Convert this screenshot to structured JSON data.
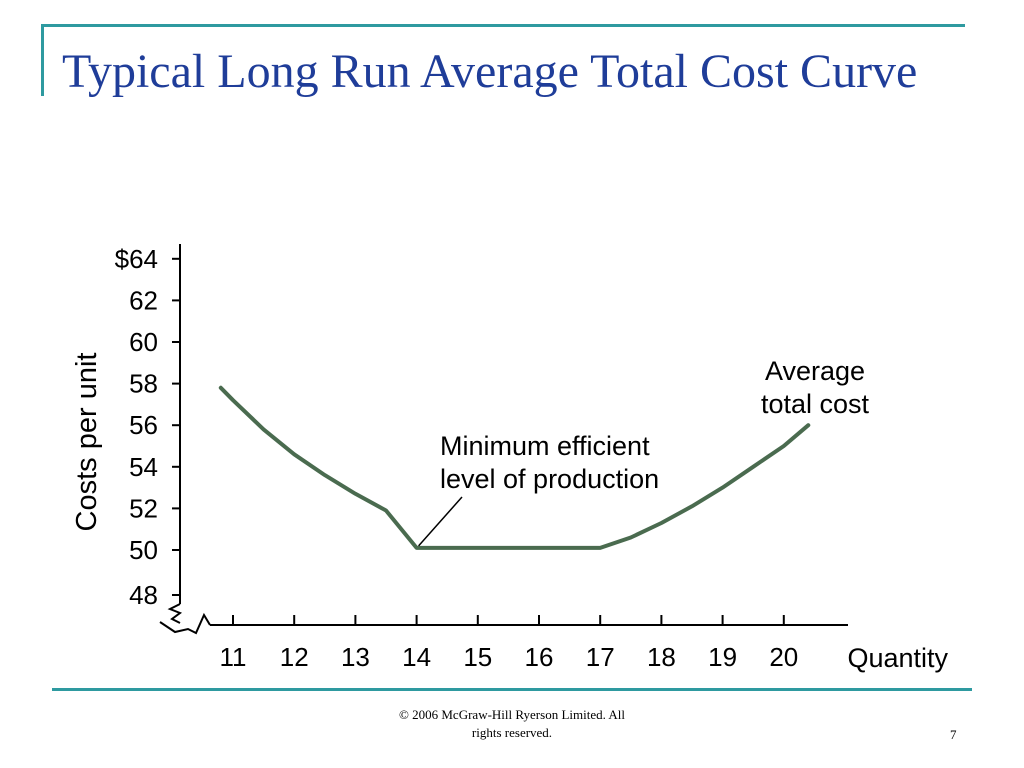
{
  "slide": {
    "title": "Typical Long Run Average Total Cost Curve",
    "footer": "© 2006 McGraw-Hill Ryerson Limited.  All\nrights reserved.",
    "page_number": "7"
  },
  "colors": {
    "title": "#1f3d99",
    "rule": "#2e9aa0",
    "curve": "#4a6b4f",
    "axis": "#000000"
  },
  "chart_data": {
    "type": "line",
    "ylabel": "Costs per unit",
    "xlabel": "Quantity",
    "x_ticks": [
      "11",
      "12",
      "13",
      "14",
      "15",
      "16",
      "17",
      "18",
      "19",
      "20"
    ],
    "y_ticks": [
      "48",
      "50",
      "52",
      "54",
      "56",
      "58",
      "60",
      "62",
      "$64"
    ],
    "y_tick_values": [
      48,
      50,
      52,
      54,
      56,
      58,
      60,
      62,
      64
    ],
    "xlim": [
      10.5,
      20.8
    ],
    "ylim": [
      48,
      64
    ],
    "axis_breaks": [
      "x",
      "y"
    ],
    "grid": false,
    "series": [
      {
        "x": [
          10.8,
          11.0,
          11.5,
          12.0,
          12.5,
          13.0,
          13.5,
          14.0,
          14.5,
          15.0,
          15.5,
          16.0,
          16.5,
          17.0,
          17.5,
          18.0,
          18.5,
          19.0,
          19.5,
          20.0,
          20.4
        ],
        "y": [
          57.8,
          57.2,
          55.8,
          54.6,
          53.6,
          52.7,
          51.9,
          50.1,
          50.1,
          50.1,
          50.1,
          50.1,
          50.1,
          50.1,
          50.6,
          51.3,
          52.1,
          53.0,
          54.0,
          55.0,
          56.0
        ]
      }
    ],
    "annotations": [
      {
        "text": "Average\ntotal cost",
        "x": 20.0,
        "y": 57.0
      },
      {
        "text": "Minimum efficient\nlevel of production",
        "x": 15.5,
        "y": 54.0,
        "points_to": [
          14.0,
          50.1
        ]
      }
    ]
  }
}
